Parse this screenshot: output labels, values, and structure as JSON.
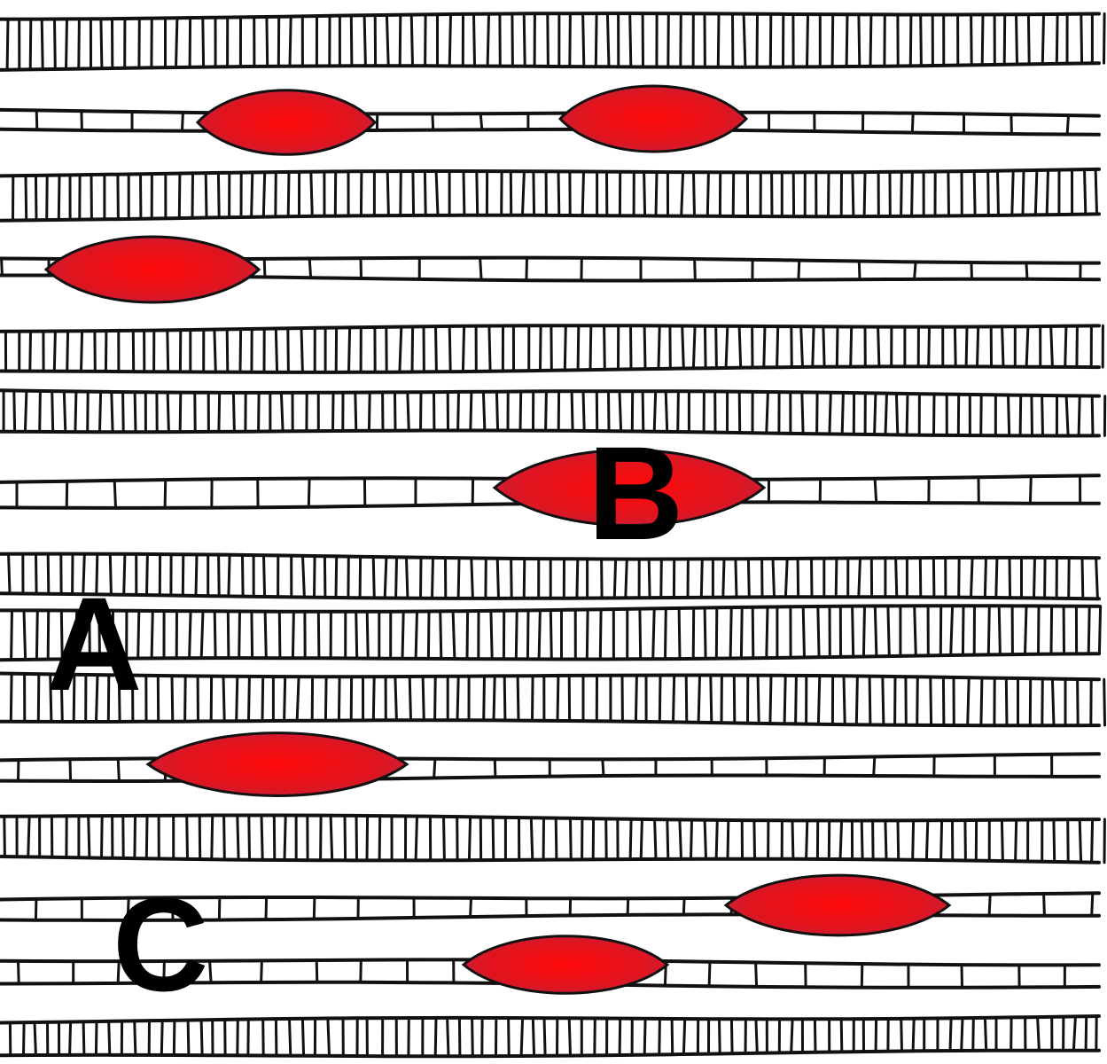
{
  "labels": {
    "a": "A",
    "b": "B",
    "c": "C"
  },
  "colors": {
    "background": "#ffffff",
    "outline": "#111111",
    "cell_center": "#ff0a0a",
    "cell_edge": "#c8203a",
    "label": "#000000"
  },
  "legend": null
}
